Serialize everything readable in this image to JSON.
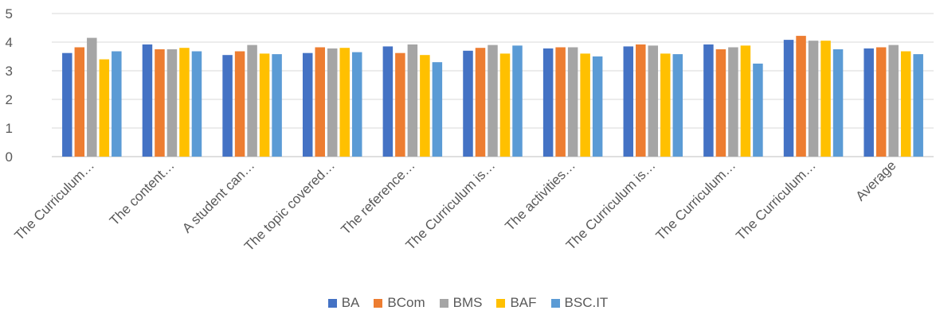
{
  "chart_data": {
    "type": "bar",
    "categories": [
      "The Curriculum…",
      "The content…",
      "A student can…",
      "The topic covered…",
      "The reference…",
      "The Curriculum is…",
      "The activities…",
      "The Curriculum is…",
      "The Curriculum…",
      "The Curriculum…",
      "Average"
    ],
    "series": [
      {
        "name": "BA",
        "color": "#4472C4",
        "values": [
          3.62,
          3.92,
          3.55,
          3.62,
          3.85,
          3.7,
          3.78,
          3.85,
          3.92,
          4.08,
          3.78
        ]
      },
      {
        "name": "BCom",
        "color": "#ED7D31",
        "values": [
          3.82,
          3.75,
          3.68,
          3.82,
          3.62,
          3.8,
          3.82,
          3.92,
          3.75,
          4.22,
          3.82
        ]
      },
      {
        "name": "BMS",
        "color": "#A5A5A5",
        "values": [
          4.15,
          3.75,
          3.9,
          3.78,
          3.92,
          3.9,
          3.82,
          3.88,
          3.82,
          4.05,
          3.9
        ]
      },
      {
        "name": "BAF",
        "color": "#FFC000",
        "values": [
          3.4,
          3.8,
          3.6,
          3.8,
          3.55,
          3.6,
          3.6,
          3.6,
          3.88,
          4.05,
          3.68
        ]
      },
      {
        "name": "BSC.IT",
        "color": "#5B9BD5",
        "values": [
          3.68,
          3.68,
          3.58,
          3.65,
          3.3,
          3.88,
          3.5,
          3.58,
          3.25,
          3.75,
          3.58
        ]
      }
    ],
    "yticks": [
      "0",
      "1",
      "2",
      "3",
      "4",
      "5"
    ],
    "ylim": [
      0,
      5
    ],
    "grid": true,
    "legend_position": "bottom"
  }
}
